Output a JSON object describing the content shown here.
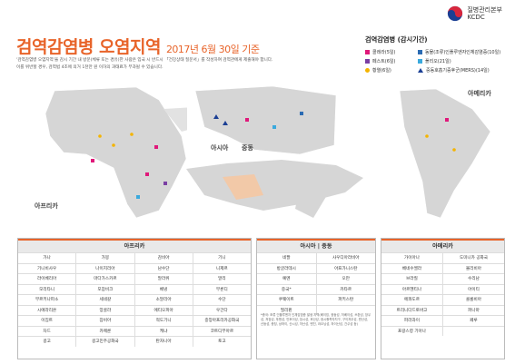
{
  "header": {
    "org_name": "질병관리본부",
    "org_abbr": "KCDC"
  },
  "title": {
    "main": "검역감염병 오염지역",
    "date": "2017년 6월 30일 기준"
  },
  "description": [
    "'검역감염병 오염지역'을 감시 기간 내 방문(체류 또는 경유)한 사람은 입국 시 반드시 「건강상태 질문서」를 작성하여 검역관에게 제출해야 합니다.",
    "이를 위반할 경우, 검역법 4조에 의거 1천만 원 이하의 과태료가 부과될 수 있습니다."
  ],
  "legend": {
    "title": "검역감염병 (감시기간)",
    "items": [
      {
        "label": "콜레라(5일)",
        "color": "#e0187a",
        "shape": "square"
      },
      {
        "label": "동물(조류)인플루엔자인체감염증(10일)",
        "color": "#2b6bb3",
        "shape": "square"
      },
      {
        "label": "페스트(6일)",
        "color": "#7a3fa3",
        "shape": "square"
      },
      {
        "label": "폴리오(21일)",
        "color": "#3aa9dd",
        "shape": "square"
      },
      {
        "label": "황열(6일)",
        "color": "#f4b400",
        "shape": "circle"
      },
      {
        "label": "중동호흡기증후군(MERS)(14일)",
        "color": "#1b3f94",
        "shape": "triangle"
      }
    ]
  },
  "maps": {
    "africa_label": "아프리카",
    "asia_label_1": "아시아",
    "asia_label_2": "중동",
    "america_label": "아메리카"
  },
  "colors": {
    "accent": "#e8642a",
    "land": "#d6d6d6",
    "sea": "#ffffff",
    "highlight": "#f2c9a8"
  },
  "tables": {
    "africa": {
      "title": "아프리카",
      "rows": [
        [
          "가나",
          "가봉",
          "감비아",
          "기니"
        ],
        [
          "기니비사우",
          "나이지리아",
          "남수단",
          "니제르"
        ],
        [
          "라이베리아",
          "마다가스카르",
          "말라위",
          "말리"
        ],
        [
          "모리타니",
          "모잠비크",
          "베냉",
          "부룬디"
        ],
        [
          "부르키나파소",
          "세네갈",
          "소말리아",
          "수단"
        ],
        [
          "시에라리온",
          "앙골라",
          "에티오피아",
          "우간다"
        ],
        [
          "이집트",
          "잠비아",
          "적도기니",
          "중앙아프리카공화국"
        ],
        [
          "차드",
          "카메룬",
          "케냐",
          "코트디부아르"
        ],
        [
          "콩고",
          "콩고민주공화국",
          "탄자니아",
          "토고"
        ]
      ]
    },
    "asia": {
      "title": "아시아 | 중동",
      "rows": [
        [
          "네팔",
          "사우디아라비아"
        ],
        [
          "방글라데시",
          "아프가니스탄"
        ],
        [
          "예멘",
          "오만"
        ],
        [
          "중국*",
          "카타르"
        ],
        [
          "쿠웨이트",
          "파키스탄"
        ],
        [
          "필리핀",
          ""
        ]
      ],
      "note": "*중국: 조류 인플루엔자 인체감염증 발생 지역(베이징, 광둥성, 허베이성, 쓰촨성, 장쑤성, 저장성, 푸젠성, 안후이성, 장시성, 후난성, 광시좡족자치구, 구이저우성, 윈난성, 산둥성, 충칭, 상하이, 산시성, 허난성, 톈진, 랴오닝성, 하이난성, 간쑤성 등)"
    },
    "america": {
      "title": "아메리카",
      "rows": [
        [
          "가이아나",
          "도미니카 공화국"
        ],
        [
          "베네수엘라",
          "볼리비아"
        ],
        [
          "브라질",
          "수리남"
        ],
        [
          "아르헨티나",
          "아이티"
        ],
        [
          "에콰도르",
          "콜롬비아"
        ],
        [
          "트리니다드토바고",
          "파나마"
        ],
        [
          "파라과이",
          "페루"
        ],
        [
          "프랑스령 기아나",
          ""
        ]
      ]
    }
  }
}
